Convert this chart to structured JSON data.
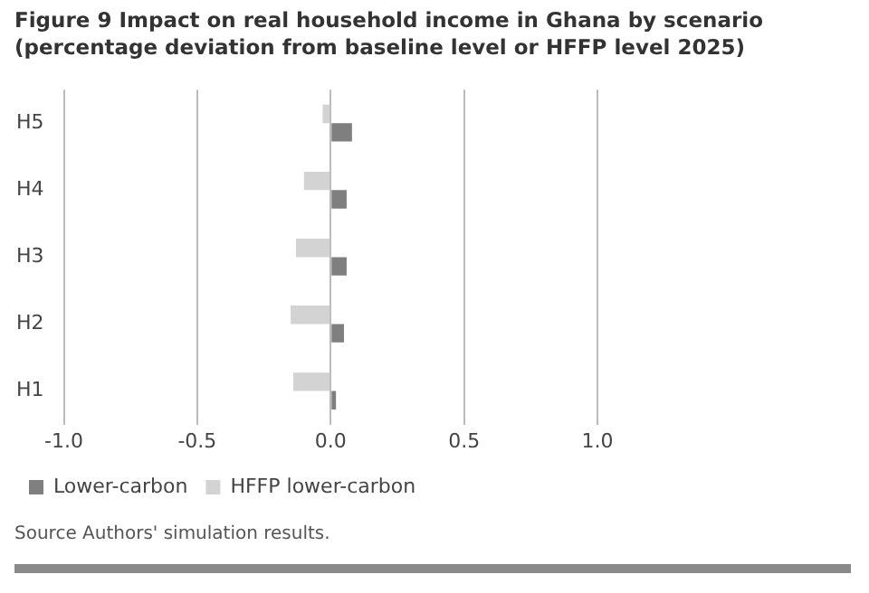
{
  "chart_data": {
    "type": "bar",
    "orientation": "horizontal",
    "title": "Figure 9 Impact on real household income in Ghana by scenario (percentage deviation from baseline level or HFFP level 2025)",
    "categories": [
      "H5",
      "H4",
      "H3",
      "H2",
      "H1"
    ],
    "series": [
      {
        "name": "Lower-carbon",
        "color": "#7f7f7f",
        "values": [
          0.08,
          0.06,
          0.06,
          0.05,
          0.02
        ]
      },
      {
        "name": "HFFP lower-carbon",
        "color": "#d3d3d3",
        "values": [
          -0.03,
          -0.1,
          -0.13,
          -0.15,
          -0.14
        ]
      }
    ],
    "xlim": [
      -1,
      1
    ],
    "xticks": [
      {
        "value": -1,
        "label": "-1.0"
      },
      {
        "value": -0.5,
        "label": "-0.5"
      },
      {
        "value": 0,
        "label": "0.0"
      },
      {
        "value": 0.5,
        "label": "0.5"
      },
      {
        "value": 1,
        "label": "1.0"
      }
    ],
    "grid": "x",
    "legend": "bottom",
    "annotations": [
      "Source Authors' simulation results."
    ]
  }
}
